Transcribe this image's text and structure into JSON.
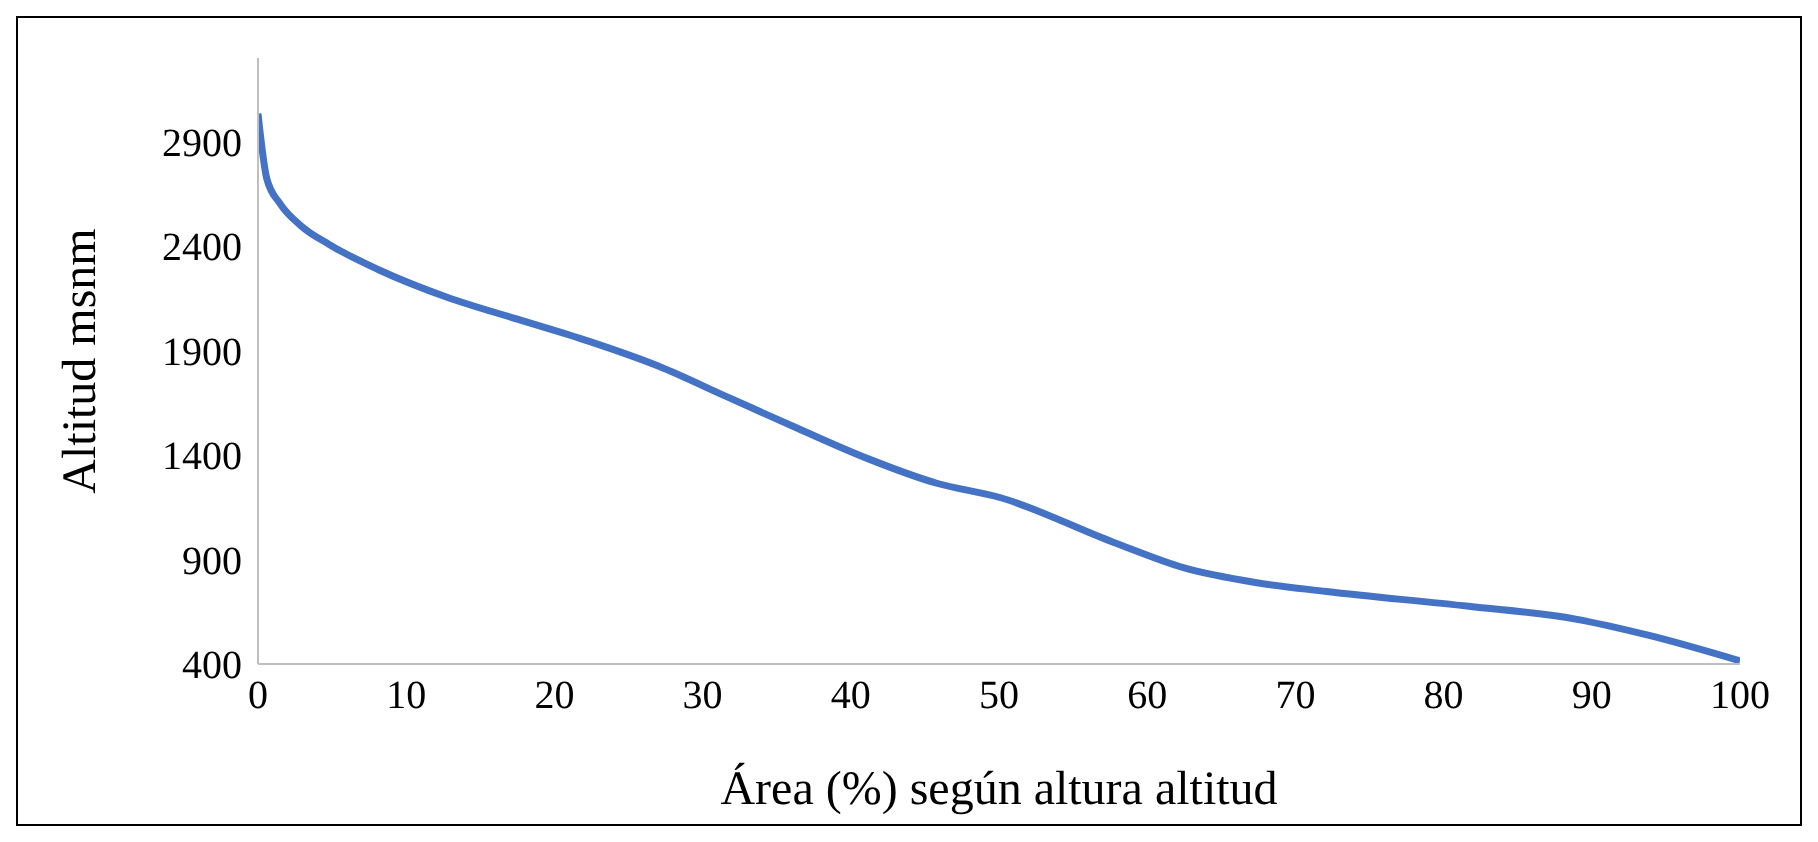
{
  "chart_data": {
    "type": "line",
    "xlabel": "Área (%) según altura altitud",
    "ylabel": "Altitud msnm",
    "x": [
      0,
      0.6,
      1.5,
      2.9,
      4.8,
      8.1,
      12.8,
      17.5,
      22.3,
      27,
      31.7,
      36.4,
      41.1,
      45.8,
      50,
      57.7,
      62.5,
      67.3,
      72.1,
      81.7,
      88.9,
      93.8,
      100
    ],
    "series": [
      {
        "color": "#4472c4",
        "values": [
          3034,
          2721,
          2602,
          2497,
          2408,
          2288,
          2154,
          2050,
          1945,
          1826,
          1677,
          1528,
          1384,
          1265,
          1198,
          983,
          860,
          790,
          747,
          676,
          615,
          538,
          415
        ]
      }
    ],
    "xlim": [
      0,
      100
    ],
    "xticks": [
      0,
      10,
      20,
      30,
      40,
      50,
      60,
      70,
      80,
      90,
      100
    ],
    "ylim": [
      400,
      3300
    ],
    "yticks": [
      400,
      900,
      1400,
      1900,
      2400,
      2900
    ],
    "grid": false,
    "legend": false,
    "marker": "none",
    "line_style": "solid"
  }
}
